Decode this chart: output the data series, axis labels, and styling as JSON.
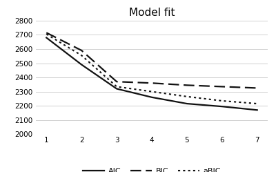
{
  "title": "Model fit",
  "x": [
    1,
    2,
    3,
    4,
    5,
    6,
    7
  ],
  "AIC": [
    2680,
    2490,
    2320,
    2260,
    2215,
    2195,
    2170
  ],
  "BIC": [
    2715,
    2590,
    2370,
    2360,
    2345,
    2335,
    2325
  ],
  "aBIC": [
    2705,
    2555,
    2335,
    2300,
    2265,
    2235,
    2215
  ],
  "ylim": [
    2000,
    2800
  ],
  "yticks": [
    2000,
    2100,
    2200,
    2300,
    2400,
    2500,
    2600,
    2700,
    2800
  ],
  "xticks": [
    1,
    2,
    3,
    4,
    5,
    6,
    7
  ],
  "line_color": "#111111",
  "grid_color": "#d0d0d0",
  "background_color": "#ffffff",
  "legend_labels": [
    "AIC",
    "BIC",
    "aBIC"
  ]
}
